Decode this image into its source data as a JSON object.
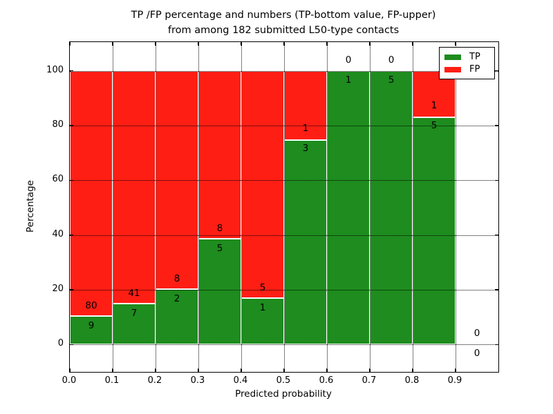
{
  "figure": {
    "title_line1": "TP /FP percentage and numbers (TP-bottom value, FP-upper)",
    "title_line2": "from among 182 submitted L50-type contacts",
    "xlabel": "Predicted probability",
    "ylabel": "Percentage"
  },
  "legend": {
    "position": "upper right",
    "items": [
      {
        "label": "TP",
        "color": "#1e8c1e"
      },
      {
        "label": "FP",
        "color": "#ff1e14"
      }
    ]
  },
  "chart_data": {
    "type": "bar",
    "stacked": true,
    "title": "TP /FP percentage and numbers (TP-bottom value, FP-upper) from among 182 submitted L50-type contacts",
    "xlabel": "Predicted probability",
    "ylabel": "Percentage",
    "total_contacts": 182,
    "xlim": [
      0.0,
      1.0
    ],
    "ylim": [
      -10,
      110.5
    ],
    "x_ticks": [
      0.0,
      0.1,
      0.2,
      0.3,
      0.4,
      0.5,
      0.6,
      0.7,
      0.8,
      0.9
    ],
    "x_tick_labels": [
      "0.0",
      "0.1",
      "0.2",
      "0.3",
      "0.4",
      "0.5",
      "0.6",
      "0.7",
      "0.8",
      "0.9"
    ],
    "y_ticks": [
      0,
      20,
      40,
      60,
      80,
      100
    ],
    "y_tick_labels": [
      "0",
      "20",
      "40",
      "60",
      "80",
      "100"
    ],
    "grid": "dotted",
    "colors": {
      "tp": "#1e8c1e",
      "fp": "#ff1e14",
      "edge": "#ffffff"
    },
    "bins": [
      {
        "x_start": 0.0,
        "x_end": 0.1,
        "tp": 9,
        "fp": 80,
        "tp_pct": 10.11,
        "fp_pct": 89.89
      },
      {
        "x_start": 0.1,
        "x_end": 0.2,
        "tp": 7,
        "fp": 41,
        "tp_pct": 14.58,
        "fp_pct": 85.42
      },
      {
        "x_start": 0.2,
        "x_end": 0.3,
        "tp": 2,
        "fp": 8,
        "tp_pct": 20.0,
        "fp_pct": 80.0
      },
      {
        "x_start": 0.3,
        "x_end": 0.4,
        "tp": 5,
        "fp": 8,
        "tp_pct": 38.46,
        "fp_pct": 61.54
      },
      {
        "x_start": 0.4,
        "x_end": 0.5,
        "tp": 1,
        "fp": 5,
        "tp_pct": 16.67,
        "fp_pct": 83.33
      },
      {
        "x_start": 0.5,
        "x_end": 0.6,
        "tp": 3,
        "fp": 1,
        "tp_pct": 75.0,
        "fp_pct": 25.0
      },
      {
        "x_start": 0.6,
        "x_end": 0.7,
        "tp": 1,
        "fp": 0,
        "tp_pct": 100.0,
        "fp_pct": 0.0
      },
      {
        "x_start": 0.7,
        "x_end": 0.8,
        "tp": 5,
        "fp": 0,
        "tp_pct": 100.0,
        "fp_pct": 0.0
      },
      {
        "x_start": 0.8,
        "x_end": 0.9,
        "tp": 5,
        "fp": 1,
        "tp_pct": 83.33,
        "fp_pct": 16.67
      },
      {
        "x_start": 0.9,
        "x_end": 1.0,
        "tp": 0,
        "fp": 0,
        "tp_pct": 0.0,
        "fp_pct": 0.0
      }
    ]
  }
}
